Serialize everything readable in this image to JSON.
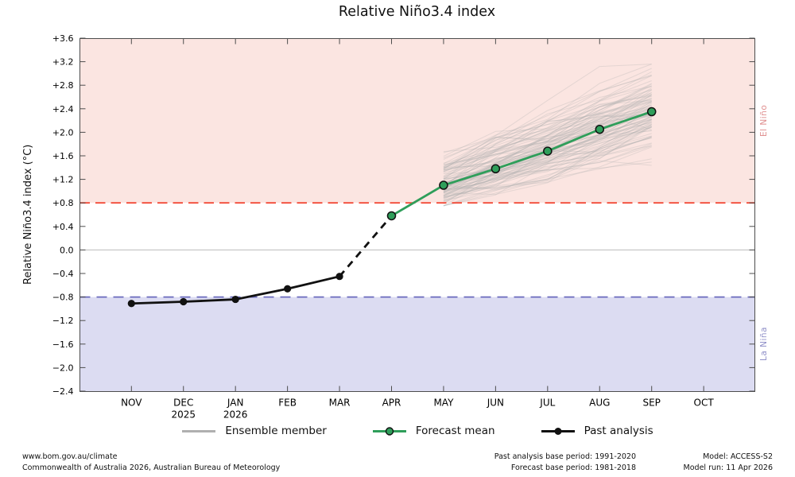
{
  "chart_data": {
    "type": "line",
    "title": "Relative Niño3.4 index",
    "ylabel": "Relative Niño3.4 index (°C)",
    "ylim": [
      -2.4,
      3.6
    ],
    "y_ticks": [
      {
        "value": 3.6,
        "label": "+3.6"
      },
      {
        "value": 3.2,
        "label": "+3.2"
      },
      {
        "value": 2.8,
        "label": "+2.8"
      },
      {
        "value": 2.4,
        "label": "+2.4"
      },
      {
        "value": 2.0,
        "label": "+2.0"
      },
      {
        "value": 1.6,
        "label": "+1.6"
      },
      {
        "value": 1.2,
        "label": "+1.2"
      },
      {
        "value": 0.8,
        "label": "+0.8"
      },
      {
        "value": 0.4,
        "label": "+0.4"
      },
      {
        "value": 0.0,
        "label": "0.0"
      },
      {
        "value": -0.4,
        "label": "−0.4"
      },
      {
        "value": -0.8,
        "label": "−0.8"
      },
      {
        "value": -1.2,
        "label": "−1.2"
      },
      {
        "value": -1.6,
        "label": "−1.6"
      },
      {
        "value": -2.0,
        "label": "−2.0"
      },
      {
        "value": -2.4,
        "label": "−2.4"
      }
    ],
    "x_months": [
      {
        "label": "NOV",
        "sublabel": ""
      },
      {
        "label": "DEC",
        "sublabel": "2025"
      },
      {
        "label": "JAN",
        "sublabel": "2026"
      },
      {
        "label": "FEB",
        "sublabel": ""
      },
      {
        "label": "MAR",
        "sublabel": ""
      },
      {
        "label": "APR",
        "sublabel": ""
      },
      {
        "label": "MAY",
        "sublabel": ""
      },
      {
        "label": "JUN",
        "sublabel": ""
      },
      {
        "label": "JUL",
        "sublabel": ""
      },
      {
        "label": "AUG",
        "sublabel": ""
      },
      {
        "label": "SEP",
        "sublabel": ""
      },
      {
        "label": "OCT",
        "sublabel": ""
      }
    ],
    "thresholds": {
      "el_nino": 0.8,
      "la_nina": -0.8,
      "zero": 0.0
    },
    "region_labels": {
      "el_nino": "El Niño",
      "la_nina": "La Niña"
    },
    "series": [
      {
        "name": "Past analysis",
        "key": "past",
        "month_idx": [
          0,
          1,
          2,
          3,
          4
        ],
        "values": [
          -0.91,
          -0.88,
          -0.84,
          -0.66,
          -0.45
        ]
      },
      {
        "name": "Forecast mean",
        "key": "forecast",
        "month_idx": [
          5,
          6,
          7,
          8,
          9,
          10
        ],
        "values": [
          0.58,
          1.1,
          1.38,
          1.68,
          2.05,
          2.35
        ]
      },
      {
        "name": "Ensemble member",
        "key": "ensemble",
        "month_idx": [
          6,
          7,
          8,
          9,
          10
        ],
        "count": 99,
        "seed": 7,
        "start_mean": 1.12,
        "start_spread": 0.22,
        "step_mean": 0.31,
        "step_spread": 0.15,
        "value_range": [
          0.75,
          3.16
        ]
      }
    ],
    "legend": [
      {
        "key": "ensemble",
        "label": "Ensemble member"
      },
      {
        "key": "forecast",
        "label": "Forecast mean"
      },
      {
        "key": "past",
        "label": "Past analysis"
      }
    ],
    "colors": {
      "el_nino_fill": "#fbe5e1",
      "la_nina_fill": "#dcdcf2",
      "el_nino_line": "#f24b38",
      "la_nina_line": "#6a6abd",
      "el_nino_text": "#e09090",
      "la_nina_text": "#9191c9",
      "forecast": "#2f9e5a",
      "past": "#111111",
      "ensemble": "#b0b0b0",
      "zero_line": "#bbbbbb",
      "frame": "#4d4d4d"
    }
  },
  "footer": {
    "left": [
      "www.bom.gov.au/climate",
      "Commonwealth of Australia 2026, Australian Bureau of Meteorology"
    ],
    "center": [
      "Past analysis base period: 1991-2020",
      "Forecast base period: 1981-2018"
    ],
    "right": [
      "Model: ACCESS-S2",
      "Model run: 11 Apr 2026"
    ]
  }
}
